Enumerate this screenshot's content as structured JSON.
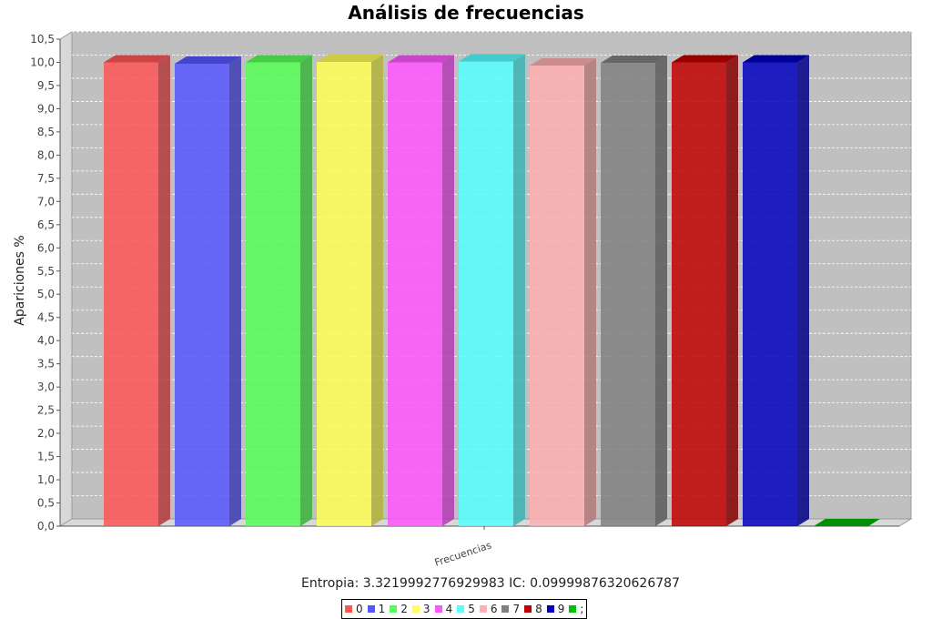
{
  "chart_data": {
    "type": "bar",
    "title": "Análisis de frecuencias",
    "ylabel": "Apariciones %",
    "xlabel": "",
    "category_label": "Frecuencias",
    "subtitle": "Entropia: 3.3219992776929983  IC: 0.09999876320626787",
    "ylim": [
      0,
      10.5
    ],
    "yticks": [
      "0,0",
      "0,5",
      "1,0",
      "1,5",
      "2,0",
      "2,5",
      "3,0",
      "3,5",
      "4,0",
      "4,5",
      "5,0",
      "5,5",
      "6,0",
      "6,5",
      "7,0",
      "7,5",
      "8,0",
      "8,5",
      "9,0",
      "9,5",
      "10,0",
      "10,5"
    ],
    "grid": true,
    "render": "3d",
    "legend_position": "bottom",
    "series": [
      {
        "name": "0",
        "values": [
          10.0
        ],
        "color": "#ff5555"
      },
      {
        "name": "1",
        "values": [
          9.97
        ],
        "color": "#5555ff"
      },
      {
        "name": "2",
        "values": [
          10.0
        ],
        "color": "#55ff55"
      },
      {
        "name": "3",
        "values": [
          10.01
        ],
        "color": "#ffff55"
      },
      {
        "name": "4",
        "values": [
          10.0
        ],
        "color": "#ff55ff"
      },
      {
        "name": "5",
        "values": [
          10.02
        ],
        "color": "#55ffff"
      },
      {
        "name": "6",
        "values": [
          9.93
        ],
        "color": "#ffafaf"
      },
      {
        "name": "7",
        "values": [
          9.99
        ],
        "color": "#808080"
      },
      {
        "name": "8",
        "values": [
          10.0
        ],
        "color": "#c00000"
      },
      {
        "name": "9",
        "values": [
          10.0
        ],
        "color": "#0000c0"
      },
      {
        "name": ";",
        "values": [
          0.0
        ],
        "color": "#00c000"
      }
    ]
  }
}
